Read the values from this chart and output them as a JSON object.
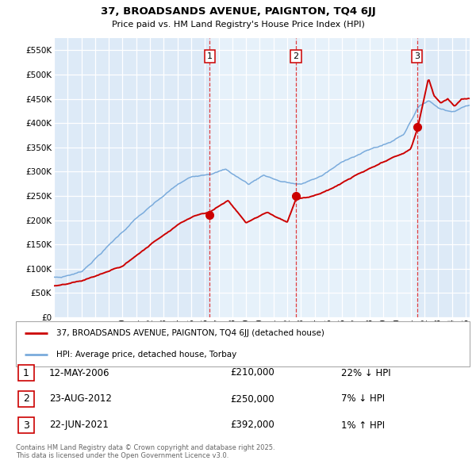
{
  "title": "37, BROADSANDS AVENUE, PAIGNTON, TQ4 6JJ",
  "subtitle": "Price paid vs. HM Land Registry's House Price Index (HPI)",
  "legend_line1": "37, BROADSANDS AVENUE, PAIGNTON, TQ4 6JJ (detached house)",
  "legend_line2": "HPI: Average price, detached house, Torbay",
  "sale_color": "#cc0000",
  "hpi_color": "#7aabdc",
  "bg_color": "#ddeaf7",
  "bg_color_light": "#e8f2fb",
  "transactions": [
    {
      "date": 2006.36,
      "price": 210000,
      "label": "1"
    },
    {
      "date": 2012.64,
      "price": 250000,
      "label": "2"
    },
    {
      "date": 2021.47,
      "price": 392000,
      "label": "3"
    }
  ],
  "table_rows": [
    {
      "num": "1",
      "date": "12-MAY-2006",
      "price": "£210,000",
      "rel": "22% ↓ HPI"
    },
    {
      "num": "2",
      "date": "23-AUG-2012",
      "price": "£250,000",
      "rel": "7% ↓ HPI"
    },
    {
      "num": "3",
      "date": "22-JUN-2021",
      "price": "£392,000",
      "rel": "1% ↑ HPI"
    }
  ],
  "footer": "Contains HM Land Registry data © Crown copyright and database right 2025.\nThis data is licensed under the Open Government Licence v3.0.",
  "ylim": [
    0,
    575000
  ],
  "yticks": [
    0,
    50000,
    100000,
    150000,
    200000,
    250000,
    300000,
    350000,
    400000,
    450000,
    500000,
    550000
  ],
  "xstart": 1995,
  "xend": 2025
}
